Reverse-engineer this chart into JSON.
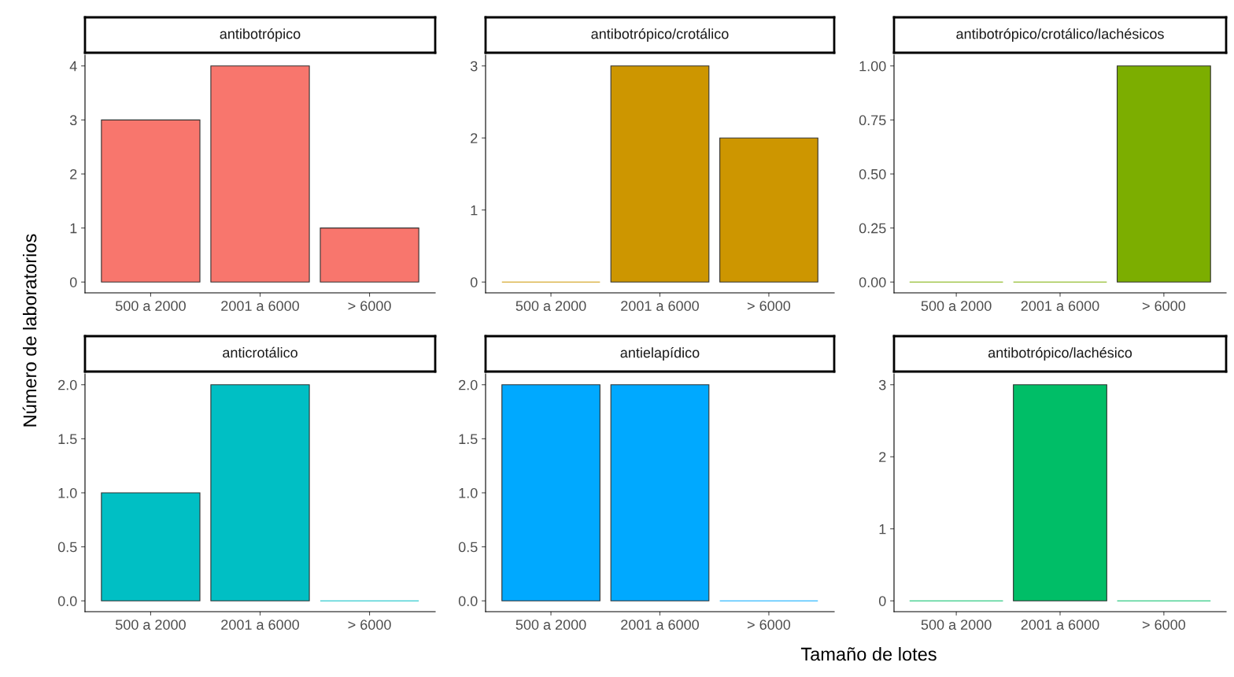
{
  "chart_data": [
    {
      "type": "bar",
      "title": "antibotrópico",
      "ylabel": "Número de laboratorios",
      "categories": [
        "500 a 2000",
        "2001 a 6000",
        "> 6000"
      ],
      "values": [
        3,
        4,
        1
      ],
      "color": "#f8766d",
      "ylim": [
        -0.2,
        4.2
      ],
      "yticks": [
        0,
        1,
        2,
        3,
        4
      ],
      "grid": false
    },
    {
      "type": "bar",
      "title": "antibotrópico/crotálico",
      "categories": [
        "500 a 2000",
        "2001 a 6000",
        "> 6000"
      ],
      "values": [
        0,
        3,
        2
      ],
      "color": "#cd9600",
      "ylim": [
        -0.15,
        3.15
      ],
      "yticks": [
        0,
        1,
        2,
        3
      ],
      "grid": false
    },
    {
      "type": "bar",
      "title": "antibotrópico/crotálico/lachésicos",
      "categories": [
        "500 a 2000",
        "2001 a 6000",
        "> 6000"
      ],
      "values": [
        0,
        0,
        1
      ],
      "color": "#7cae00",
      "ylim": [
        -0.05,
        1.05
      ],
      "yticks": [
        {
          "value": 0,
          "label": "0.00"
        },
        {
          "value": 0.25,
          "label": "0.25"
        },
        {
          "value": 0.5,
          "label": "0.50"
        },
        {
          "value": 0.75,
          "label": "0.75"
        },
        {
          "value": 1,
          "label": "1.00"
        }
      ],
      "grid": false
    },
    {
      "type": "bar",
      "title": "anticrotálico",
      "categories": [
        "500 a 2000",
        "2001 a 6000",
        "> 6000"
      ],
      "values": [
        1,
        2,
        0
      ],
      "color": "#00bfc4",
      "ylim": [
        -0.1,
        2.1
      ],
      "yticks": [
        {
          "value": 0,
          "label": "0.0"
        },
        {
          "value": 0.5,
          "label": "0.5"
        },
        {
          "value": 1,
          "label": "1.0"
        },
        {
          "value": 1.5,
          "label": "1.5"
        },
        {
          "value": 2,
          "label": "2.0"
        }
      ],
      "grid": false
    },
    {
      "type": "bar",
      "title": "antielapídico",
      "xlabel": "Tamaño de lotes",
      "categories": [
        "500 a 2000",
        "2001 a 6000",
        "> 6000"
      ],
      "values": [
        2,
        2,
        0
      ],
      "color": "#00a9ff",
      "ylim": [
        -0.1,
        2.1
      ],
      "yticks": [
        {
          "value": 0,
          "label": "0.0"
        },
        {
          "value": 0.5,
          "label": "0.5"
        },
        {
          "value": 1,
          "label": "1.0"
        },
        {
          "value": 1.5,
          "label": "1.5"
        },
        {
          "value": 2,
          "label": "2.0"
        }
      ],
      "grid": false
    },
    {
      "type": "bar",
      "title": "antibotrópico/lachésico",
      "categories": [
        "500 a 2000",
        "2001 a 6000",
        "> 6000"
      ],
      "values": [
        0,
        3,
        0
      ],
      "color": "#00be67",
      "ylim": [
        -0.15,
        3.15
      ],
      "yticks": [
        0,
        1,
        2,
        3
      ],
      "grid": false
    }
  ]
}
